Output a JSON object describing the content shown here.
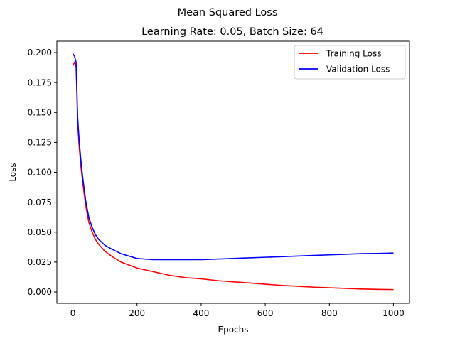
{
  "chart_data": {
    "type": "line",
    "title": "Mean Squared Loss",
    "subtitle": "Learning Rate: 0.05, Batch Size: 64",
    "xlabel": "Epochs",
    "ylabel": "Loss",
    "xlim": [
      -50,
      1050
    ],
    "ylim": [
      -0.0095,
      0.2095
    ],
    "xticks": [
      0,
      200,
      400,
      600,
      800,
      1000
    ],
    "xtick_labels": [
      "0",
      "200",
      "400",
      "600",
      "800",
      "1000"
    ],
    "yticks": [
      0.0,
      0.025,
      0.05,
      0.075,
      0.1,
      0.125,
      0.15,
      0.175,
      0.2
    ],
    "ytick_labels": [
      "0.000",
      "0.025",
      "0.050",
      "0.075",
      "0.100",
      "0.125",
      "0.150",
      "0.175",
      "0.200"
    ],
    "grid": false,
    "legend_position": "top-right",
    "series": [
      {
        "name": "Training Loss",
        "color": "#ff0000",
        "x": [
          0,
          5,
          10,
          15,
          20,
          25,
          30,
          40,
          50,
          60,
          70,
          80,
          100,
          120,
          150,
          200,
          250,
          300,
          350,
          400,
          450,
          500,
          550,
          600,
          650,
          700,
          750,
          800,
          850,
          900,
          950,
          1000
        ],
        "y": [
          0.189,
          0.192,
          0.188,
          0.14,
          0.12,
          0.105,
          0.093,
          0.072,
          0.058,
          0.05,
          0.044,
          0.04,
          0.034,
          0.03,
          0.025,
          0.02,
          0.017,
          0.014,
          0.012,
          0.011,
          0.0095,
          0.0085,
          0.0075,
          0.0065,
          0.0055,
          0.0048,
          0.004,
          0.0035,
          0.003,
          0.0025,
          0.0022,
          0.002
        ]
      },
      {
        "name": "Validation Loss",
        "color": "#0000ff",
        "x": [
          0,
          5,
          10,
          15,
          20,
          25,
          30,
          40,
          50,
          60,
          70,
          80,
          100,
          120,
          150,
          200,
          250,
          300,
          350,
          400,
          450,
          500,
          550,
          600,
          650,
          700,
          750,
          800,
          850,
          900,
          950,
          1000
        ],
        "y": [
          0.199,
          0.197,
          0.192,
          0.145,
          0.125,
          0.11,
          0.097,
          0.076,
          0.062,
          0.054,
          0.048,
          0.044,
          0.039,
          0.036,
          0.032,
          0.028,
          0.027,
          0.027,
          0.027,
          0.027,
          0.0275,
          0.028,
          0.0285,
          0.029,
          0.0295,
          0.03,
          0.0305,
          0.031,
          0.0315,
          0.032,
          0.0322,
          0.0325
        ]
      }
    ]
  }
}
